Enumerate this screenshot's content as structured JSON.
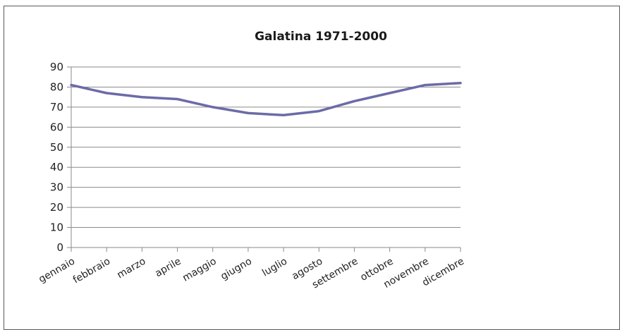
{
  "chart_data": {
    "type": "line",
    "title": "Galatina 1971-2000",
    "xlabel": "",
    "ylabel": "",
    "categories": [
      "gennaio",
      "febbraio",
      "marzo",
      "aprile",
      "maggio",
      "giugno",
      "luglio",
      "agosto",
      "settembre",
      "ottobre",
      "novembre",
      "dicembre"
    ],
    "series": [
      {
        "values": [
          81,
          77,
          75,
          74,
          70,
          67,
          66,
          68,
          73,
          77,
          81,
          82
        ]
      }
    ],
    "ylim": [
      0,
      90
    ],
    "yticks": [
      "0",
      "10",
      "20",
      "30",
      "40",
      "50",
      "60",
      "70",
      "80",
      "90"
    ],
    "grid": true,
    "legend": "none",
    "colors": {
      "line": "#6B6BA8",
      "grid": "#8a8a8a",
      "axis": "#8a8a8a"
    }
  }
}
